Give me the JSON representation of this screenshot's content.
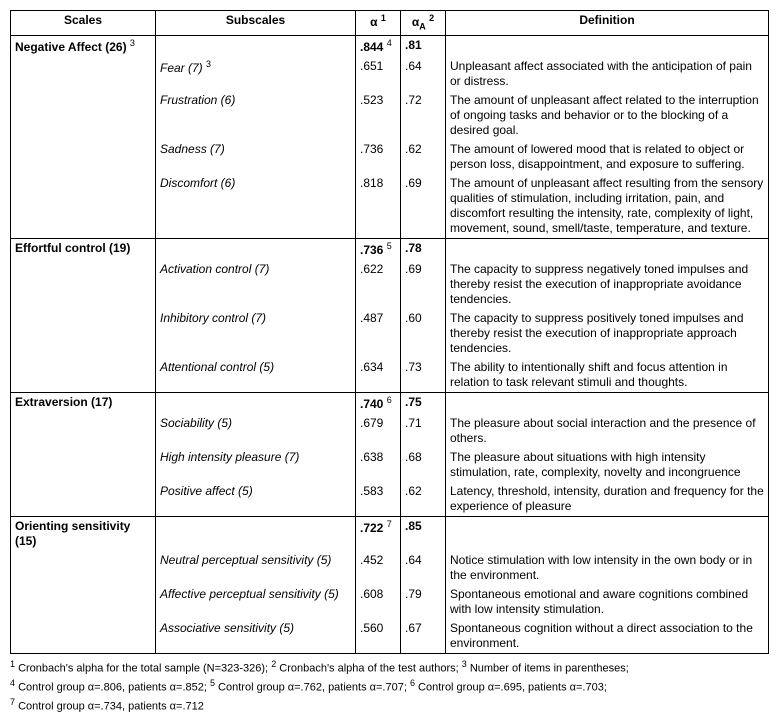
{
  "headers": {
    "scales": "Scales",
    "subscales": "Subscales",
    "alpha": "α",
    "alpha_sup": "1",
    "alphaA": "α",
    "alphaA_sub": "A",
    "alphaA_sup": "2",
    "definition": "Definition"
  },
  "sections": [
    {
      "scale": "Negative Affect",
      "scale_items": "(26)",
      "scale_sup": "3",
      "alpha": ".844",
      "alpha_sup": "4",
      "alphaA": ".81",
      "rows": [
        {
          "sub": "Fear",
          "items": "(7)",
          "sub_sup": "3",
          "a": ".651",
          "aA": ".64",
          "def": "Unpleasant affect associated with the anticipation of pain or distress."
        },
        {
          "sub": "Frustration",
          "items": "(6)",
          "a": ".523",
          "aA": ".72",
          "def": "The amount of unpleasant affect related to the interruption of ongoing tasks and behavior or to the blocking of a desired goal."
        },
        {
          "sub": "Sadness",
          "items": "(7)",
          "a": ".736",
          "aA": ".62",
          "def": "The amount of lowered mood that is related to object or person loss, disappointment, and exposure to suffering."
        },
        {
          "sub": "Discomfort",
          "items": "(6)",
          "a": ".818",
          "aA": ".69",
          "def": "The amount of unpleasant affect resulting from the sensory qualities of stimulation, including irritation, pain, and discomfort resulting the intensity, rate, complexity of light, movement, sound, smell/taste, temperature, and texture."
        }
      ]
    },
    {
      "scale": "Effortful control",
      "scale_items": "(19)",
      "alpha": ".736",
      "alpha_sup": "5",
      "alphaA": ".78",
      "rows": [
        {
          "sub": "Activation control",
          "items": "(7)",
          "a": ".622",
          "aA": ".69",
          "def": "The capacity to suppress negatively toned impulses and thereby resist the execution of inappropriate avoidance tendencies."
        },
        {
          "sub": "Inhibitory control",
          "items": "(7)",
          "a": ".487",
          "aA": ".60",
          "def": "The capacity to suppress positively toned impulses and thereby resist the execution of inappropriate approach tendencies."
        },
        {
          "sub": "Attentional control",
          "items": "(5)",
          "a": ".634",
          "aA": ".73",
          "def": "The ability to intentionally shift and focus attention in relation to task relevant stimuli and thoughts."
        }
      ]
    },
    {
      "scale": "Extraversion",
      "scale_items": "(17)",
      "alpha": ".740",
      "alpha_sup": "6",
      "alphaA": ".75",
      "rows": [
        {
          "sub": "Sociability",
          "items": "(5)",
          "a": ".679",
          "aA": ".71",
          "def": "The pleasure about social interaction and the presence of others."
        },
        {
          "sub": "High intensity pleasure",
          "items": "(7)",
          "a": ".638",
          "aA": ".68",
          "def": "The pleasure about situations with high intensity stimulation, rate, complexity, novelty and incongruence"
        },
        {
          "sub": "Positive affect",
          "items": "(5)",
          "a": ".583",
          "aA": ".62",
          "def": "Latency, threshold, intensity, duration and frequency for the experience of pleasure"
        }
      ]
    },
    {
      "scale": "Orienting sensitivity",
      "scale_items": "(15)",
      "alpha": ".722",
      "alpha_sup": "7",
      "alphaA": ".85",
      "rows": [
        {
          "sub": "Neutral perceptual sensitivity",
          "items": "(5)",
          "a": ".452",
          "aA": ".64",
          "def": "Notice stimulation with low intensity in the own body or in the environment."
        },
        {
          "sub": "Affective perceptual sensitivity",
          "items": "(5)",
          "a": ".608",
          "aA": ".79",
          "def": "Spontaneous emotional and aware cognitions combined with low intensity stimulation."
        },
        {
          "sub": "Associative sensitivity",
          "items": "(5)",
          "a": ".560",
          "aA": ".67",
          "def": "Spontaneous cognition without a direct association to the environment."
        }
      ]
    }
  ],
  "footnotes": "¹ Cronbach's alpha for the total sample (N=323-326); ² Cronbach's alpha of the test authors; ³ Number of items in parentheses;\n⁴ Control group α=.806, patients α=.852; ⁵ Control group α=.762, patients α=.707; ⁶ Control group α=.695, patients α=.703;\n⁷ Control group α=.734, patients α=.712"
}
